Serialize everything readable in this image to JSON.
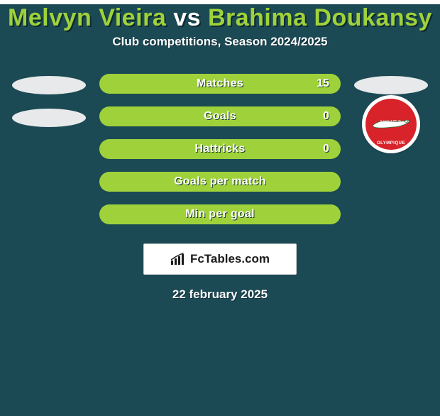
{
  "background_color": "#1b4a54",
  "title": {
    "player1": "Melvyn Vieira",
    "vs": "vs",
    "player2": "Brahima Doukansy",
    "player_color": "#9fd23a",
    "vs_color": "#ffffff",
    "fontsize": 34
  },
  "subtitle": "Club competitions, Season 2024/2025",
  "subtitle_fontsize": 17,
  "bars": {
    "fill_color": "#9fd23a",
    "text_color": "#ffffff",
    "height": 28,
    "radius": 14,
    "fontsize": 16,
    "items": [
      {
        "label": "Matches",
        "value": "15"
      },
      {
        "label": "Goals",
        "value": "0"
      },
      {
        "label": "Hattricks",
        "value": "0"
      },
      {
        "label": "Goals per match",
        "value": ""
      },
      {
        "label": "Min per goal",
        "value": ""
      }
    ]
  },
  "left_side": {
    "ellipse_count": 2,
    "ellipse_color": "#e7e9ea"
  },
  "right_side": {
    "ellipse_count": 1,
    "ellipse_color": "#e7e9ea",
    "club": {
      "name_top": "NIMES",
      "name_bottom": "OLYMPIQUE",
      "bg_color": "#d8232a",
      "ring_color": "#ffffff",
      "croc_color": "#ffffff",
      "croc_outline": "#2e6b3e"
    }
  },
  "brand": {
    "text": "FcTables.com",
    "box_bg": "#ffffff",
    "box_border": "#d4d4d4",
    "icon_color": "#1b1b1b"
  },
  "date": "22 february 2025",
  "date_fontsize": 17
}
